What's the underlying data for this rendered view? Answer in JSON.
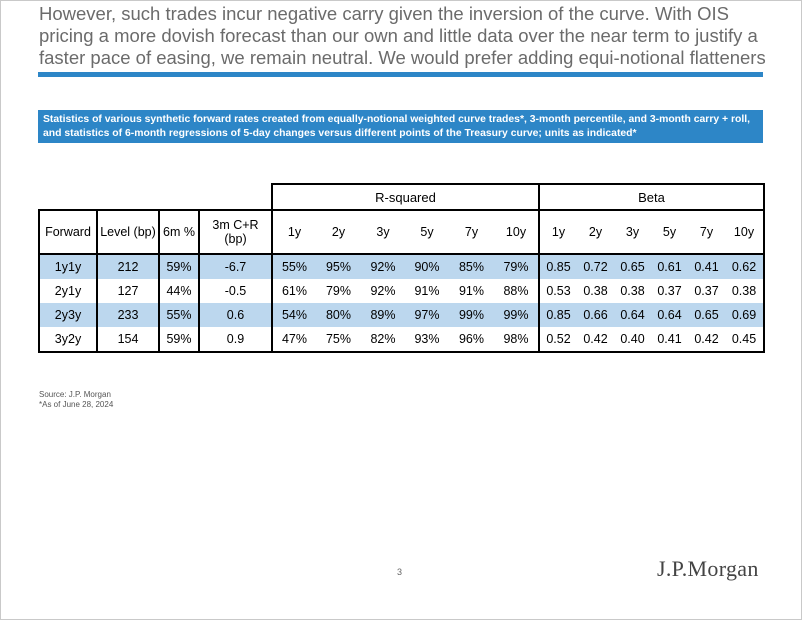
{
  "headline": "However, such trades incur negative carry given the inversion of the curve. With OIS pricing a more dovish forecast than our own and little data over the near term to justify a faster pace of easing, we remain neutral. We would prefer adding equi-notional flatteners",
  "caption": "Statistics of various synthetic forward rates created from equally-notional weighted curve trades*, 3-month percentile, and 3-month carry + roll, and statistics of 6-month regressions of 5-day changes versus different points of the Treasury curve; units as indicated*",
  "table": {
    "group_headers": [
      "R-squared",
      "Beta"
    ],
    "columns": [
      "Forward",
      "Level (bp)",
      "6m %",
      "3m C+R (bp)",
      "1y",
      "2y",
      "3y",
      "5y",
      "7y",
      "10y",
      "1y",
      "2y",
      "3y",
      "5y",
      "7y",
      "10y"
    ],
    "rows": [
      [
        "1y1y",
        "212",
        "59%",
        "-6.7",
        "55%",
        "95%",
        "92%",
        "90%",
        "85%",
        "79%",
        "0.85",
        "0.72",
        "0.65",
        "0.61",
        "0.41",
        "0.62"
      ],
      [
        "2y1y",
        "127",
        "44%",
        "-0.5",
        "61%",
        "79%",
        "92%",
        "91%",
        "91%",
        "88%",
        "0.53",
        "0.38",
        "0.38",
        "0.37",
        "0.37",
        "0.38"
      ],
      [
        "2y3y",
        "233",
        "55%",
        "0.6",
        "54%",
        "80%",
        "89%",
        "97%",
        "99%",
        "99%",
        "0.85",
        "0.66",
        "0.64",
        "0.64",
        "0.65",
        "0.69"
      ],
      [
        "3y2y",
        "154",
        "59%",
        "0.9",
        "47%",
        "75%",
        "82%",
        "93%",
        "96%",
        "98%",
        "0.52",
        "0.42",
        "0.40",
        "0.41",
        "0.42",
        "0.45"
      ]
    ]
  },
  "source": "Source: J.P. Morgan",
  "footnote": "*As of June 28, 2024",
  "page_number": "3",
  "logo_text": "J.P.Morgan",
  "colors": {
    "accent_blue": "#2d86c7",
    "row_shade": "#bcd7ee",
    "headline_gray": "#6b6b6b"
  }
}
